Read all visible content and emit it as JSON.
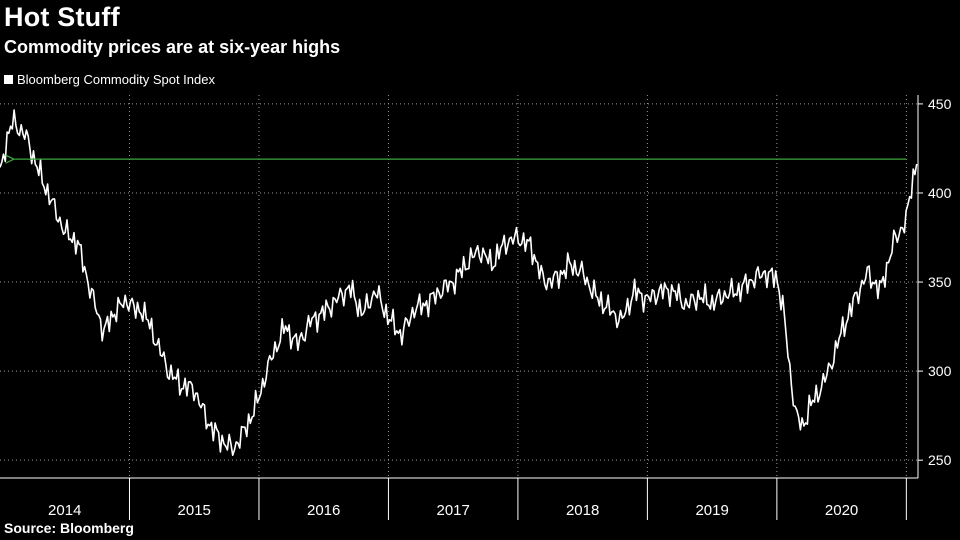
{
  "header": {
    "title": "Hot Stuff",
    "subtitle": "Commodity prices are at six-year highs"
  },
  "legend": {
    "label": "Bloomberg Commodity Spot Index",
    "color": "#ffffff"
  },
  "footer": {
    "source": "Source: Bloomberg"
  },
  "colors": {
    "line": "#ffffff",
    "arrow": "#3aa83a",
    "grid": "#9a9a9a",
    "background": "#000000"
  },
  "chart_data": {
    "type": "line",
    "title": "Hot Stuff",
    "subtitle": "Commodity prices are at six-year highs",
    "xlabel": "",
    "ylabel": "",
    "xlim": [
      2014.0,
      2021.09
    ],
    "ylim": [
      240,
      455
    ],
    "y_ticks": [
      250,
      300,
      350,
      400,
      450
    ],
    "y_axis_side": "right",
    "year_labels": [
      "2014",
      "2015",
      "2016",
      "2017",
      "2018",
      "2019",
      "2020"
    ],
    "grid": {
      "vertical_at_year_boundaries": true,
      "horizontal_dotted": true
    },
    "legend_position": "top-left",
    "series": [
      {
        "name": "Bloomberg Commodity Spot Index",
        "x": [
          2014.0,
          2014.05,
          2014.1,
          2014.2,
          2014.3,
          2014.4,
          2014.5,
          2014.6,
          2014.7,
          2014.8,
          2014.9,
          2015.0,
          2015.05,
          2015.1,
          2015.2,
          2015.3,
          2015.4,
          2015.5,
          2015.6,
          2015.7,
          2015.8,
          2015.9,
          2016.0,
          2016.05,
          2016.1,
          2016.2,
          2016.3,
          2016.4,
          2016.5,
          2016.6,
          2016.7,
          2016.8,
          2016.9,
          2017.0,
          2017.1,
          2017.2,
          2017.3,
          2017.4,
          2017.5,
          2017.6,
          2017.7,
          2017.8,
          2017.9,
          2018.0,
          2018.1,
          2018.2,
          2018.3,
          2018.4,
          2018.5,
          2018.6,
          2018.7,
          2018.8,
          2018.9,
          2019.0,
          2019.1,
          2019.2,
          2019.3,
          2019.4,
          2019.5,
          2019.6,
          2019.7,
          2019.8,
          2019.9,
          2020.0,
          2020.05,
          2020.1,
          2020.15,
          2020.2,
          2020.25,
          2020.3,
          2020.4,
          2020.5,
          2020.6,
          2020.7,
          2020.8,
          2020.9,
          2021.0,
          2021.05,
          2021.08
        ],
        "values": [
          410,
          430,
          440,
          432,
          412,
          395,
          378,
          372,
          345,
          322,
          335,
          340,
          333,
          335,
          318,
          300,
          292,
          290,
          272,
          262,
          256,
          268,
          285,
          298,
          308,
          325,
          315,
          328,
          333,
          340,
          347,
          332,
          345,
          330,
          320,
          335,
          338,
          345,
          350,
          360,
          368,
          360,
          372,
          375,
          370,
          350,
          352,
          360,
          355,
          342,
          335,
          328,
          345,
          340,
          345,
          345,
          337,
          342,
          338,
          343,
          345,
          351,
          355,
          352,
          335,
          300,
          275,
          268,
          280,
          285,
          300,
          322,
          340,
          355,
          345,
          372,
          385,
          408,
          418
        ]
      }
    ],
    "annotations": [
      {
        "type": "arrow",
        "from_x": 2021.0,
        "to_x": 2014.1,
        "y": 419,
        "color": "#3aa83a",
        "meaning": "current level matches the 2014 level"
      }
    ]
  }
}
